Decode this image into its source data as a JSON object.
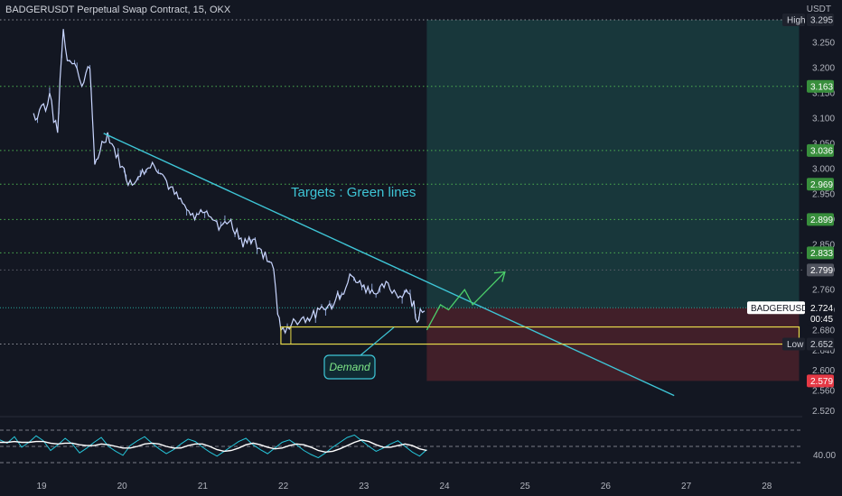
{
  "header": {
    "title": "BADGERUSDT Perpetual Swap Contract, 15, OKX",
    "unit": "USDT"
  },
  "chart_data": {
    "type": "candlestick",
    "symbol": "BADGERUSDT.P",
    "price_axis": {
      "ticks": [
        "3.250",
        "3.200",
        "3.150",
        "3.100",
        "3.050",
        "3.000",
        "2.950",
        "2.900",
        "2.850",
        "2.800",
        "2.760",
        "2.720",
        "2.680",
        "2.640",
        "2.600",
        "2.560",
        "2.520"
      ],
      "ylim": [
        2.5,
        3.3
      ]
    },
    "time_axis": {
      "ticks": [
        "19",
        "20",
        "21",
        "22",
        "23",
        "24",
        "25",
        "26",
        "27",
        "28"
      ],
      "xlim": [
        18.9,
        28.5
      ]
    },
    "current_price": {
      "label": "BADGERUSDT.P",
      "value": "2.724",
      "countdown": "00:45",
      "color": "#26a69a"
    },
    "high": {
      "label": "High",
      "value": "3.295"
    },
    "low": {
      "label": "Low",
      "value": "2.652"
    },
    "target_levels": [
      {
        "value": "3.163",
        "color": "#4caf50"
      },
      {
        "value": "3.036",
        "color": "#4caf50"
      },
      {
        "value": "2.969",
        "color": "#4caf50"
      },
      {
        "value": "2.899",
        "color": "#4caf50"
      },
      {
        "value": "2.833",
        "color": "#4caf50"
      }
    ],
    "reference_levels": [
      {
        "value": "2.799",
        "color": "#5d606b"
      },
      {
        "value": "2.579",
        "color": "#f23645"
      }
    ],
    "price_path": [
      [
        18.9,
        3.11
      ],
      [
        18.95,
        3.1
      ],
      [
        19.0,
        3.13
      ],
      [
        19.05,
        3.12
      ],
      [
        19.1,
        3.15
      ],
      [
        19.15,
        3.1
      ],
      [
        19.2,
        3.07
      ],
      [
        19.23,
        3.18
      ],
      [
        19.27,
        3.28
      ],
      [
        19.32,
        3.22
      ],
      [
        19.38,
        3.21
      ],
      [
        19.44,
        3.2
      ],
      [
        19.5,
        3.16
      ],
      [
        19.55,
        3.19
      ],
      [
        19.6,
        3.2
      ],
      [
        19.63,
        3.1
      ],
      [
        19.66,
        3.0
      ],
      [
        19.7,
        3.03
      ],
      [
        19.75,
        3.05
      ],
      [
        19.82,
        3.07
      ],
      [
        19.9,
        3.04
      ],
      [
        20.0,
        3.0
      ],
      [
        20.1,
        2.97
      ],
      [
        20.2,
        2.99
      ],
      [
        20.3,
        3.0
      ],
      [
        20.4,
        3.01
      ],
      [
        20.5,
        2.99
      ],
      [
        20.6,
        2.96
      ],
      [
        20.7,
        2.94
      ],
      [
        20.8,
        2.92
      ],
      [
        20.9,
        2.9
      ],
      [
        21.0,
        2.92
      ],
      [
        21.1,
        2.91
      ],
      [
        21.2,
        2.88
      ],
      [
        21.3,
        2.9
      ],
      [
        21.4,
        2.88
      ],
      [
        21.5,
        2.85
      ],
      [
        21.6,
        2.86
      ],
      [
        21.7,
        2.84
      ],
      [
        21.8,
        2.82
      ],
      [
        21.88,
        2.8
      ],
      [
        21.93,
        2.72
      ],
      [
        21.97,
        2.67
      ],
      [
        22.05,
        2.69
      ],
      [
        22.2,
        2.7
      ],
      [
        22.4,
        2.71
      ],
      [
        22.6,
        2.73
      ],
      [
        22.75,
        2.76
      ],
      [
        22.85,
        2.79
      ],
      [
        22.95,
        2.77
      ],
      [
        23.05,
        2.76
      ],
      [
        23.15,
        2.75
      ],
      [
        23.25,
        2.77
      ],
      [
        23.35,
        2.76
      ],
      [
        23.45,
        2.75
      ],
      [
        23.55,
        2.75
      ],
      [
        23.62,
        2.73
      ],
      [
        23.66,
        2.7
      ],
      [
        23.7,
        2.72
      ],
      [
        23.78,
        2.73
      ]
    ],
    "trendline": {
      "from": [
        19.77,
        3.07
      ],
      "to": [
        26.85,
        2.55
      ]
    },
    "demand_zone": {
      "label": "Demand",
      "from_x": 21.97,
      "to_x": 28.4,
      "top": 2.686,
      "bottom": 2.652
    },
    "projection_path": [
      [
        23.78,
        2.68
      ],
      [
        23.95,
        2.73
      ],
      [
        24.05,
        2.72
      ],
      [
        24.25,
        2.76
      ],
      [
        24.35,
        2.73
      ],
      [
        24.75,
        2.795
      ]
    ],
    "target_zone": {
      "from_x": 23.78,
      "to_x": 28.4,
      "top": 3.295,
      "bottom": 2.724
    },
    "stop_zone": {
      "from_x": 23.78,
      "to_x": 28.4,
      "top": 2.724,
      "bottom": 2.579
    },
    "annotation": "Targets : Green lines",
    "oscillator": {
      "tick": "40.00",
      "line_levels": [
        70,
        50,
        30
      ],
      "values": [
        58,
        54,
        62,
        49,
        55,
        63,
        57,
        45,
        52,
        60,
        53,
        42,
        48,
        55,
        61,
        50,
        44,
        39,
        51,
        57,
        62,
        54,
        47,
        41,
        46,
        53,
        59,
        56,
        49,
        43,
        38,
        44,
        50,
        56,
        60,
        52,
        46,
        41,
        48,
        55,
        58,
        52,
        45,
        40,
        36,
        42,
        49,
        55,
        61,
        64,
        57,
        50,
        44,
        48,
        53,
        57,
        50,
        43,
        38,
        46
      ],
      "smooth": [
        55,
        55,
        56,
        55,
        55,
        56,
        56,
        54,
        53,
        54,
        54,
        52,
        51,
        51,
        53,
        52,
        50,
        48,
        48,
        50,
        53,
        54,
        53,
        50,
        48,
        48,
        51,
        53,
        53,
        50,
        46,
        44,
        45,
        48,
        52,
        54,
        52,
        49,
        47,
        48,
        51,
        53,
        52,
        49,
        45,
        43,
        44,
        47,
        51,
        55,
        58,
        56,
        52,
        49,
        49,
        51,
        53,
        51,
        47,
        45
      ],
      "ylim": [
        20,
        80
      ]
    }
  }
}
